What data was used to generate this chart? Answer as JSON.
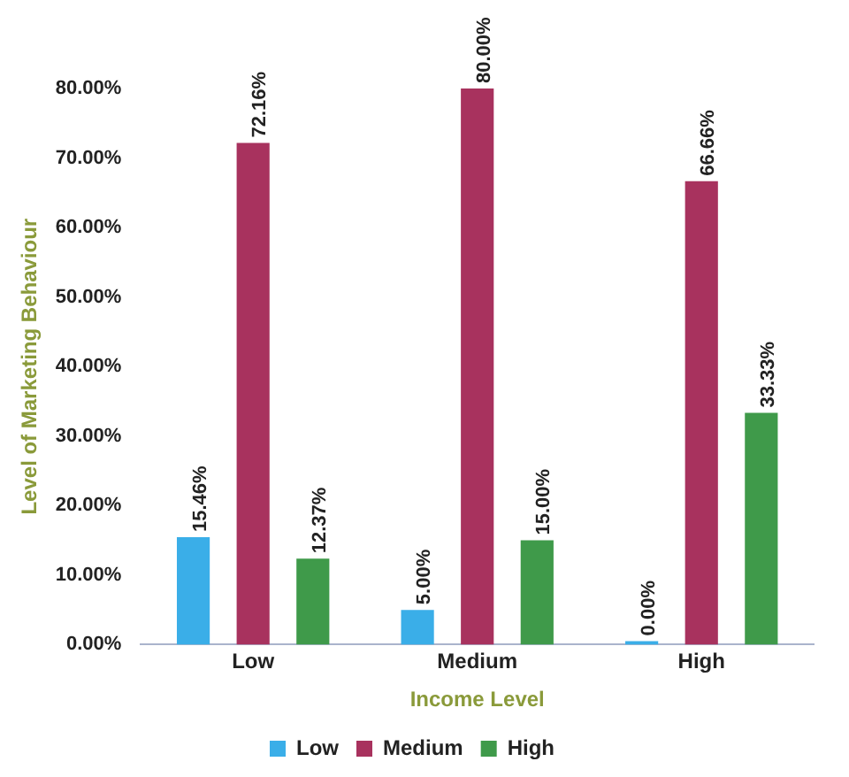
{
  "chart_data": {
    "type": "bar",
    "xlabel": "Income Level",
    "ylabel": "Level of Marketing Behaviour",
    "categories": [
      "Low",
      "Medium",
      "High"
    ],
    "series": [
      {
        "name": "Low",
        "color": "#3aaee8",
        "values": [
          15.46,
          5.0,
          0.0
        ],
        "value_labels": [
          "15.46%",
          "5.00%",
          "0.00%"
        ]
      },
      {
        "name": "Medium",
        "color": "#a8325e",
        "values": [
          72.16,
          80.0,
          66.66
        ],
        "value_labels": [
          "72.16%",
          "80.00%",
          "66.66%"
        ]
      },
      {
        "name": "High",
        "color": "#3f9a4a",
        "values": [
          12.37,
          15.0,
          33.33
        ],
        "value_labels": [
          "12.37%",
          "15.00%",
          "33.33%"
        ]
      }
    ],
    "ylim": [
      0,
      80
    ],
    "yticks": [
      {
        "value": 0,
        "label": "0.00%"
      },
      {
        "value": 10,
        "label": "10.00%"
      },
      {
        "value": 20,
        "label": "20.00%"
      },
      {
        "value": 30,
        "label": "30.00%"
      },
      {
        "value": 40,
        "label": "40.00%"
      },
      {
        "value": 50,
        "label": "50.00%"
      },
      {
        "value": 60,
        "label": "60.00%"
      },
      {
        "value": 70,
        "label": "70.00%"
      },
      {
        "value": 80,
        "label": "80.00%"
      }
    ],
    "grid": false,
    "legend": "bottom"
  }
}
